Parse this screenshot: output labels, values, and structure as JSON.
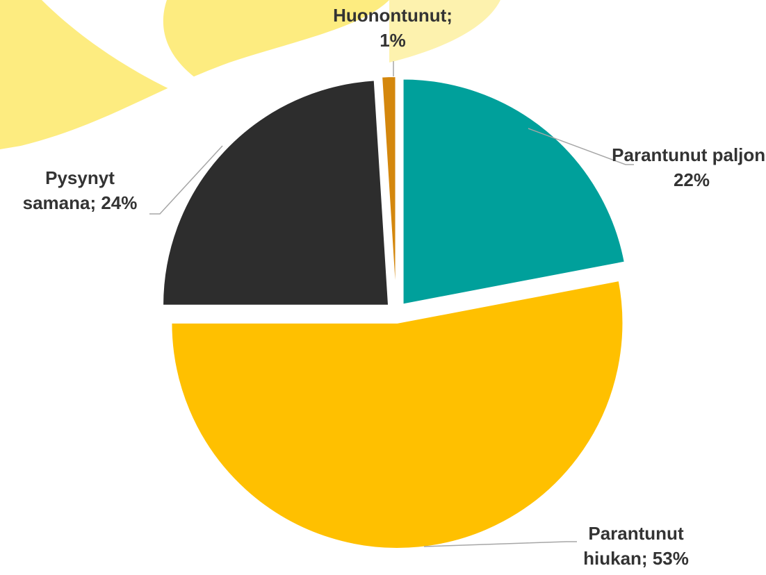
{
  "chart_data": {
    "type": "pie",
    "values": [
      22,
      53,
      24,
      1
    ],
    "value_labels": [
      "Parantunut paljon; 22%",
      "Parantunut hiukan; 53%",
      "Pysynyt samana; 24%",
      "Huonontunut; 1%"
    ],
    "colors": [
      "#00a09b",
      "#ffc000",
      "#2d2d2d",
      "#d4870d"
    ]
  }
}
